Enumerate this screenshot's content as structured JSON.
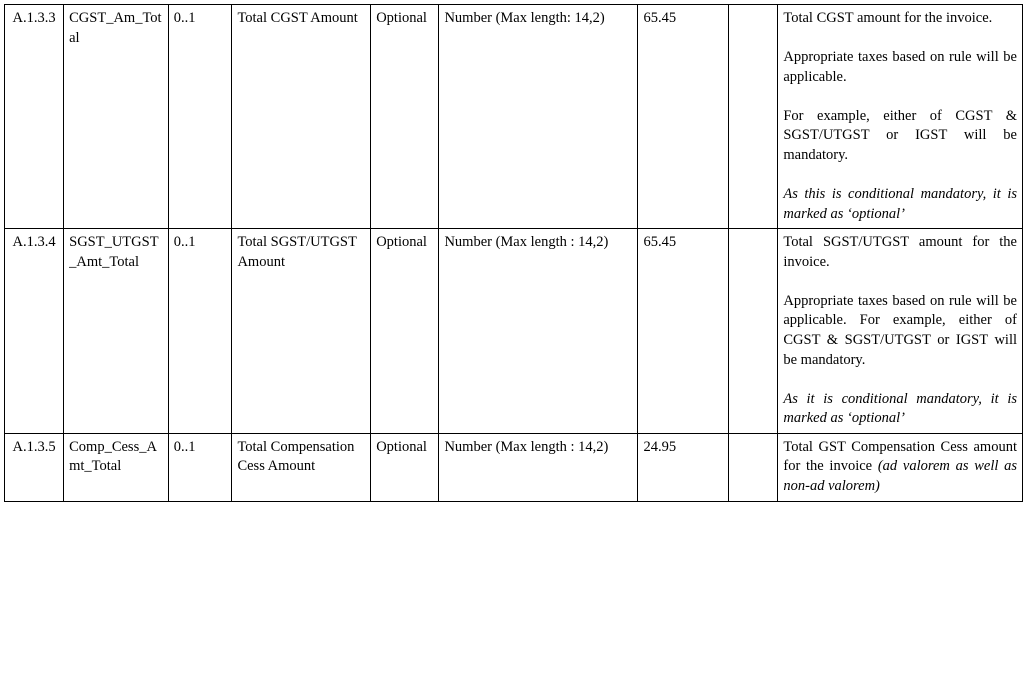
{
  "table": {
    "columns": [
      {
        "name": "col0",
        "width_pct": 5.2,
        "align": "center"
      },
      {
        "name": "col1",
        "width_pct": 9.2,
        "align": "left"
      },
      {
        "name": "col2",
        "width_pct": 5.6,
        "align": "left"
      },
      {
        "name": "col3",
        "width_pct": 12.2,
        "align": "left"
      },
      {
        "name": "col4",
        "width_pct": 6,
        "align": "left"
      },
      {
        "name": "col5",
        "width_pct": 17.5,
        "align": "justify"
      },
      {
        "name": "col6",
        "width_pct": 8,
        "align": "left"
      },
      {
        "name": "col7",
        "width_pct": 4.3,
        "align": "left"
      },
      {
        "name": "col8",
        "width_pct": 21.5,
        "align": "justify"
      }
    ],
    "rows": [
      {
        "id": "A.1.3.3",
        "field": "CGST_Am_Total",
        "card": "0..1",
        "label": "Total CGST Amount",
        "req": "Optional",
        "type": "Number (Max length: 14,2)",
        "sample": "65.45",
        "col7": "",
        "desc": {
          "p1": "Total CGST amount for the invoice.",
          "p2": "Appropriate taxes based on rule will be applicable.",
          "p3": "For example, either of CGST & SGST/UTGST or IGST will be mandatory.",
          "p4_italic": "As this is conditional mandatory, it is marked as ‘optional’"
        }
      },
      {
        "id": "A.1.3.4",
        "field": "SGST_UTGST_Amt_Total",
        "card": "0..1",
        "label": "Total SGST/UTGST Amount",
        "req": "Optional",
        "type": "Number (Max length : 14,2)",
        "sample": "65.45",
        "col7": "",
        "desc": {
          "p1": "Total SGST/UTGST amount for the invoice.",
          "p2": "Appropriate taxes based on rule will be applicable. For example, either of CGST & SGST/UTGST or IGST will be mandatory.",
          "p3_italic": "As it is conditional mandatory, it is marked as ‘optional’"
        }
      },
      {
        "id": "A.1.3.5",
        "field": "Comp_Cess_Amt_Total",
        "card": "0..1",
        "label": "Total Compensation Cess Amount",
        "req": "Optional",
        "type": "Number (Max length : 14,2)",
        "sample": "24.95",
        "col7": "",
        "desc": {
          "p1_prefix": "Total GST Compensation Cess amount for the invoice ",
          "p1_italic": "(ad valorem as well as non-ad valorem)"
        }
      }
    ],
    "border_color": "#000000",
    "background_color": "#ffffff",
    "text_color": "#000000",
    "font_family": "Times New Roman",
    "font_size_pt": 11
  }
}
